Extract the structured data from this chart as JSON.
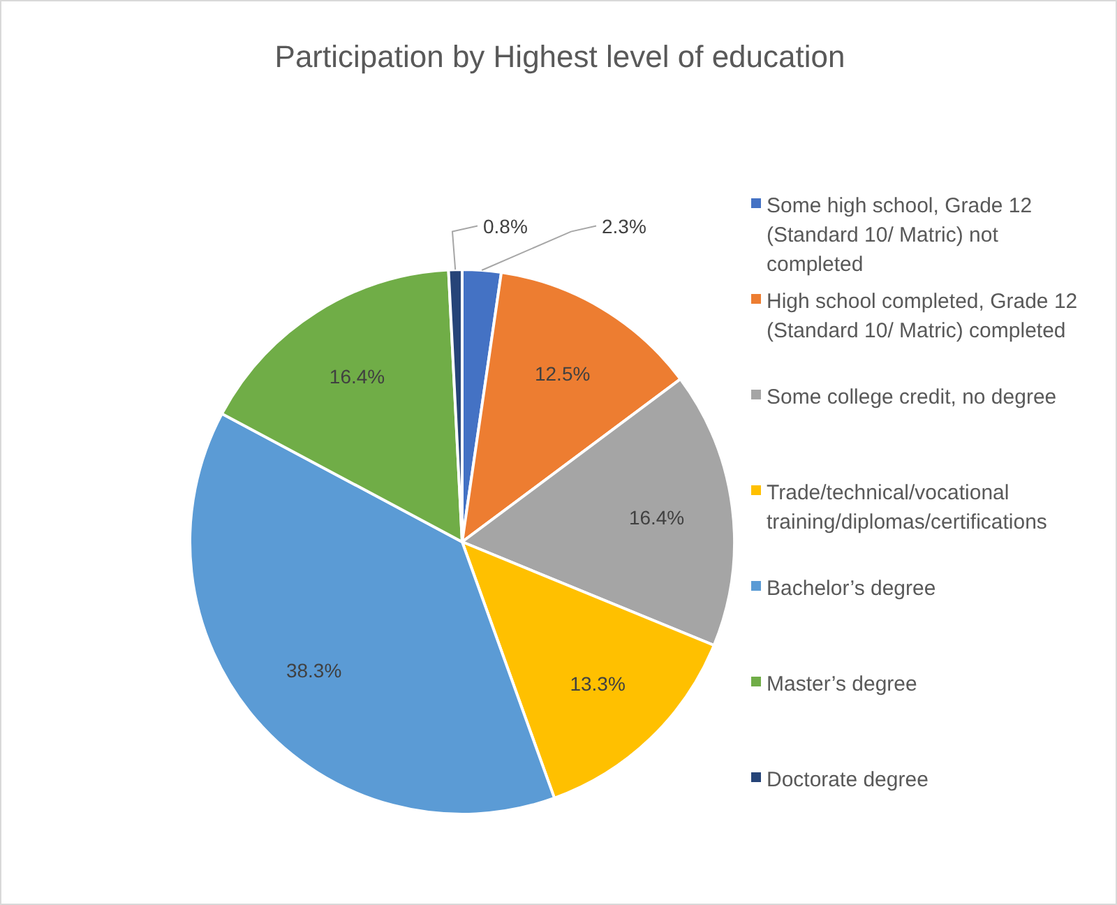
{
  "chart_data": {
    "type": "pie",
    "title": "Participation by Highest level of education",
    "categories": [
      "Some high school, Grade 12 (Standard 10/ Matric) not completed",
      "High school completed, Grade 12 (Standard 10/ Matric) completed",
      "Some college credit, no degree",
      "Trade/technical/vocational training/diplomas/certifications",
      "Bachelor’s degree",
      "Master’s degree",
      "Doctorate degree"
    ],
    "values": [
      2.3,
      12.5,
      16.4,
      13.3,
      38.3,
      16.4,
      0.8
    ],
    "value_labels": [
      "2.3%",
      "12.5%",
      "16.4%",
      "13.3%",
      "38.3%",
      "16.4%",
      "0.8%"
    ],
    "colors": [
      "#4472c4",
      "#ed7d31",
      "#a5a5a5",
      "#ffc000",
      "#5b9bd5",
      "#70ad47",
      "#264478"
    ],
    "legend": "right"
  }
}
